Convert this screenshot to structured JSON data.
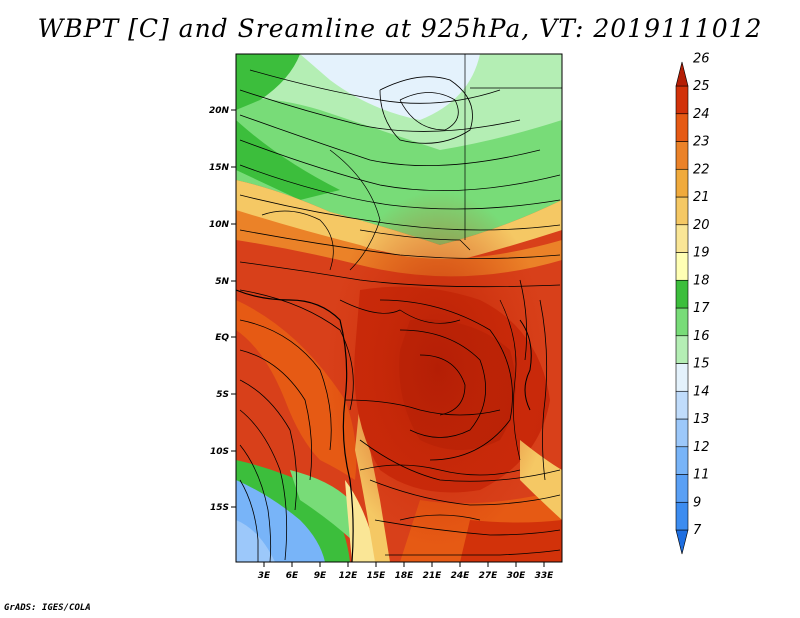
{
  "title": "WBPT [C] and Sreamline at 925hPa, VT: 2019111012",
  "credit": "GrADS: IGES/COLA",
  "map": {
    "lat_ticks": [
      "20N",
      "15N",
      "10N",
      "5N",
      "EQ",
      "5S",
      "10S",
      "15S"
    ],
    "lon_ticks": [
      "3E",
      "6E",
      "9E",
      "12E",
      "15E",
      "18E",
      "21E",
      "24E",
      "27E",
      "30E",
      "33E"
    ]
  },
  "colorbar": {
    "labels": [
      "7",
      "9",
      "11",
      "12",
      "13",
      "14",
      "15",
      "16",
      "17",
      "18",
      "19",
      "20",
      "21",
      "22",
      "23",
      "24",
      "25",
      "26"
    ],
    "colors": [
      "#1e6ee0",
      "#3c8cf0",
      "#5aa0f5",
      "#78b4f8",
      "#9cc8fa",
      "#c0dcfb",
      "#e4f2fc",
      "#b4eeb4",
      "#78dc78",
      "#3cbe3c",
      "#ffffb4",
      "#fae696",
      "#f5c864",
      "#f0aa3c",
      "#eb8228",
      "#e65a14",
      "#d2320a",
      "#b41e05"
    ]
  }
}
